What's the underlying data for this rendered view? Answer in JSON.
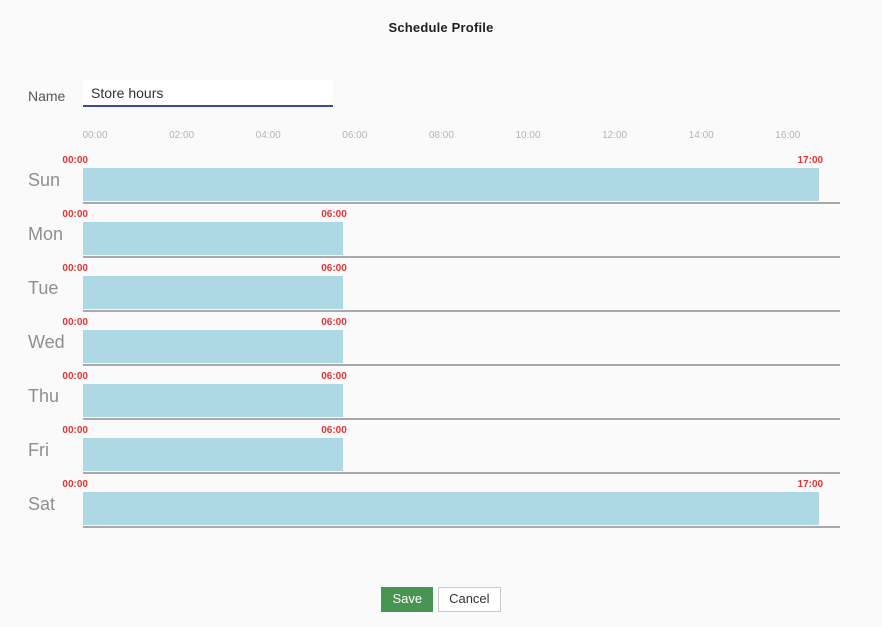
{
  "title": "Schedule Profile",
  "name_field": {
    "label": "Name",
    "value": "Store hours"
  },
  "schedule": {
    "axis_ticks": [
      "00:00",
      "02:00",
      "04:00",
      "06:00",
      "08:00",
      "10:00",
      "12:00",
      "14:00",
      "16:00"
    ],
    "tick_interval_hours": 2,
    "days": [
      {
        "day": "Sun",
        "start": "00:00",
        "end": "17:00"
      },
      {
        "day": "Mon",
        "start": "00:00",
        "end": "06:00"
      },
      {
        "day": "Tue",
        "start": "00:00",
        "end": "06:00"
      },
      {
        "day": "Wed",
        "start": "00:00",
        "end": "06:00"
      },
      {
        "day": "Thu",
        "start": "00:00",
        "end": "06:00"
      },
      {
        "day": "Fri",
        "start": "00:00",
        "end": "06:00"
      },
      {
        "day": "Sat",
        "start": "00:00",
        "end": "17:00"
      }
    ]
  },
  "buttons": {
    "save": "Save",
    "cancel": "Cancel"
  },
  "colors": {
    "bar": "#aed8e4",
    "underline": "#3a4aa5",
    "save_button": "#489452",
    "time_label": "#e03535"
  }
}
